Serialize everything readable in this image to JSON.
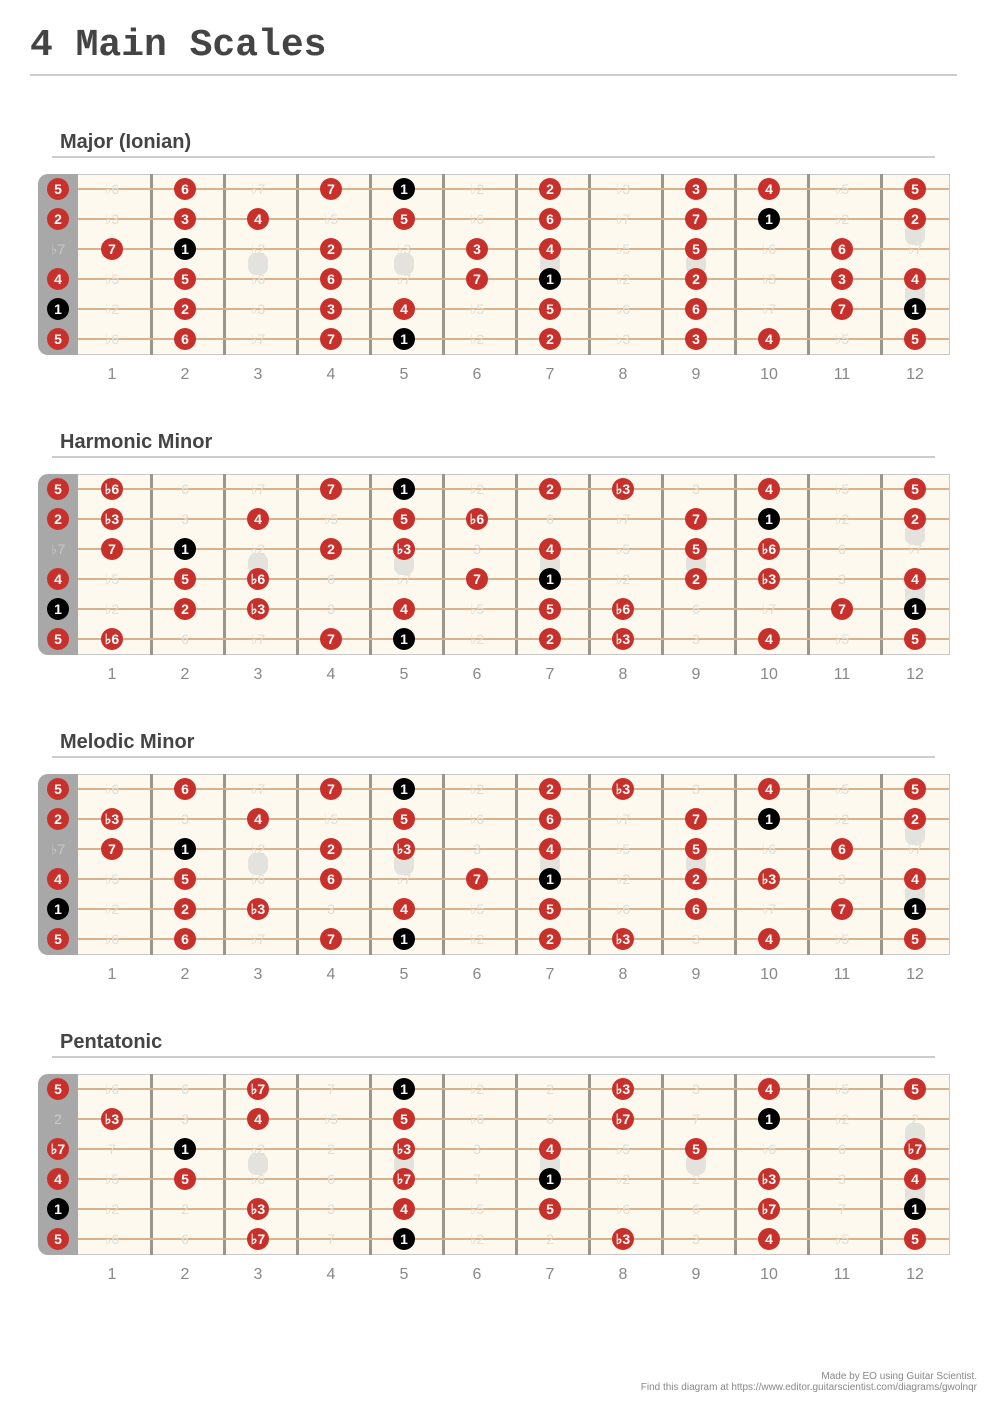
{
  "page": {
    "title": "4 Main Scales"
  },
  "colors": {
    "in_scale": "#c8312b",
    "root": "#000000",
    "out_of_scale_text": "#e2ddd2",
    "fretboard": "#fdf9ef",
    "nut": "#a8a8a8",
    "string": "#d6b28e",
    "fret": "#9a958d"
  },
  "fret_numbers": [
    "1",
    "2",
    "3",
    "4",
    "5",
    "6",
    "7",
    "8",
    "9",
    "10",
    "11",
    "12"
  ],
  "markers": [
    {
      "fret": 3,
      "pos": "mid"
    },
    {
      "fret": 5,
      "pos": "mid"
    },
    {
      "fret": 7,
      "pos": "mid"
    },
    {
      "fret": 9,
      "pos": "mid"
    },
    {
      "fret": 12,
      "pos": "upper"
    },
    {
      "fret": 12,
      "pos": "lower"
    }
  ],
  "intervals_by_string": [
    [
      "5",
      "♭6",
      "6",
      "♭7",
      "7",
      "1",
      "♭2",
      "2",
      "♭3",
      "3",
      "4",
      "♭5",
      "5"
    ],
    [
      "2",
      "♭3",
      "3",
      "4",
      "♭5",
      "5",
      "♭6",
      "6",
      "♭7",
      "7",
      "1",
      "♭2",
      "2"
    ],
    [
      "♭7",
      "7",
      "1",
      "♭2",
      "2",
      "♭3",
      "3",
      "4",
      "♭5",
      "5",
      "♭6",
      "6",
      "♭7"
    ],
    [
      "4",
      "♭5",
      "5",
      "♭6",
      "6",
      "♭7",
      "7",
      "1",
      "♭2",
      "2",
      "♭3",
      "3",
      "4"
    ],
    [
      "1",
      "♭2",
      "2",
      "♭3",
      "3",
      "4",
      "♭5",
      "5",
      "♭6",
      "6",
      "♭7",
      "7",
      "1"
    ],
    [
      "5",
      "♭6",
      "6",
      "♭7",
      "7",
      "1",
      "♭2",
      "2",
      "♭3",
      "3",
      "4",
      "♭5",
      "5"
    ]
  ],
  "scales": [
    {
      "name": "Major (Ionian)",
      "notes": [
        "1",
        "2",
        "3",
        "4",
        "5",
        "6",
        "7"
      ]
    },
    {
      "name": "Harmonic Minor",
      "notes": [
        "1",
        "2",
        "♭3",
        "4",
        "5",
        "♭6",
        "7"
      ]
    },
    {
      "name": "Melodic Minor",
      "notes": [
        "1",
        "2",
        "♭3",
        "4",
        "5",
        "6",
        "7"
      ]
    },
    {
      "name": "Pentatonic",
      "notes": [
        "1",
        "♭3",
        "4",
        "5",
        "♭7"
      ]
    }
  ],
  "footer": {
    "line1": "Made by EO using Guitar Scientist.",
    "line2": "Find this diagram at https://www.editor.guitarscientist.com/diagrams/gwolnqr"
  }
}
